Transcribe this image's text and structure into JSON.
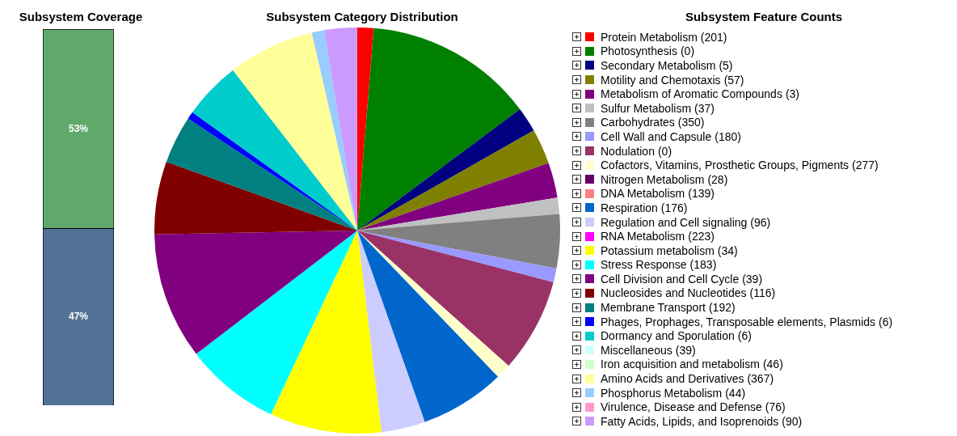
{
  "chart_data": [
    {
      "type": "bar",
      "title": "Subsystem Coverage",
      "categories": [
        null
      ],
      "stacked": true,
      "tick_labels": false,
      "legend": false,
      "series": [
        {
          "color": "#527295",
          "values": [
            47
          ],
          "value_labels": [
            "47%"
          ]
        },
        {
          "color": "#5fa96b",
          "values": [
            53
          ],
          "value_labels": [
            "53%"
          ]
        }
      ]
    },
    {
      "type": "pie",
      "title": "Subsystem Category Distribution",
      "legend": false,
      "categories": [
        null,
        null,
        null,
        null,
        null,
        null,
        null,
        null,
        null,
        null,
        null,
        null,
        null,
        null,
        null,
        null,
        null,
        null,
        null,
        null,
        null,
        null
      ],
      "values": [
        1.3,
        13.5,
        2,
        2.8,
        2.8,
        1.3,
        4.3,
        1.1,
        7.5,
        1.2,
        6.8,
        3.5,
        8.9,
        7.6,
        10.1,
        5.8,
        3.8,
        0.6,
        4.6,
        6.9,
        1,
        2.6
      ],
      "colors": [
        "#ff0000",
        "#008000",
        "#000080",
        "#808000",
        "#800080",
        "#c0c0c0",
        "#808080",
        "#9999ff",
        "#993366",
        "#ffffcc",
        "#0066cc",
        "#ccccff",
        "#ffff00",
        "#00ffff",
        "#800080",
        "#800000",
        "#008080",
        "#0000ff",
        "#00cccc",
        "#ffff99",
        "#99ccff",
        "#cc99ff"
      ]
    },
    {
      "type": "other",
      "title": "Subsystem Feature Counts",
      "value_labels": [
        "(201)",
        "(0)",
        "(5)",
        "(57)",
        "(3)",
        "(37)",
        "(350)",
        "(180)",
        "(0)",
        "(277)",
        "(28)",
        "(139)",
        "(176)",
        "(96)",
        "(223)",
        "(34)",
        "(183)",
        "(39)",
        "(116)",
        "(192)",
        "(6)",
        "(6)",
        "(39)",
        "(46)",
        "(367)",
        "(44)",
        "(76)",
        "(90)"
      ],
      "categories": [
        "Protein Metabolism",
        "Photosynthesis",
        "Secondary Metabolism",
        "Motility and Chemotaxis",
        "Metabolism of Aromatic Compounds",
        "Sulfur Metabolism",
        "Carbohydrates",
        "Cell Wall and Capsule",
        "Nodulation",
        "Cofactors, Vitamins, Prosthetic Groups, Pigments",
        "Nitrogen Metabolism",
        "DNA Metabolism",
        "Respiration",
        "Regulation and Cell signaling",
        "RNA Metabolism",
        "Potassium metabolism",
        "Stress Response",
        "Cell Division and Cell Cycle",
        "Nucleosides and Nucleotides",
        "Membrane Transport",
        "Phages, Prophages, Transposable elements, Plasmids",
        "Dormancy and Sporulation",
        "Miscellaneous",
        "Iron acquisition and metabolism",
        "Amino Acids and Derivatives",
        "Phosphorus Metabolism",
        "Virulence, Disease and Defense",
        "Fatty Acids, Lipids, and Isoprenoids"
      ],
      "values": [
        201,
        0,
        5,
        57,
        3,
        37,
        350,
        180,
        0,
        277,
        28,
        139,
        176,
        96,
        223,
        34,
        183,
        39,
        116,
        192,
        6,
        6,
        39,
        46,
        367,
        44,
        76,
        90
      ],
      "colors": [
        "#ff0000",
        "#008000",
        "#000080",
        "#808000",
        "#800080",
        "#c0c0c0",
        "#808080",
        "#9999ff",
        "#993366",
        "#ffffcc",
        "#660066",
        "#ff8080",
        "#0066cc",
        "#ccccff",
        "#ff00ff",
        "#ffff00",
        "#00ffff",
        "#800080",
        "#800000",
        "#008080",
        "#0000ff",
        "#00cccc",
        "#ccffff",
        "#ccffcc",
        "#ffff99",
        "#99ccff",
        "#ff99cc",
        "#cc99ff"
      ]
    }
  ]
}
